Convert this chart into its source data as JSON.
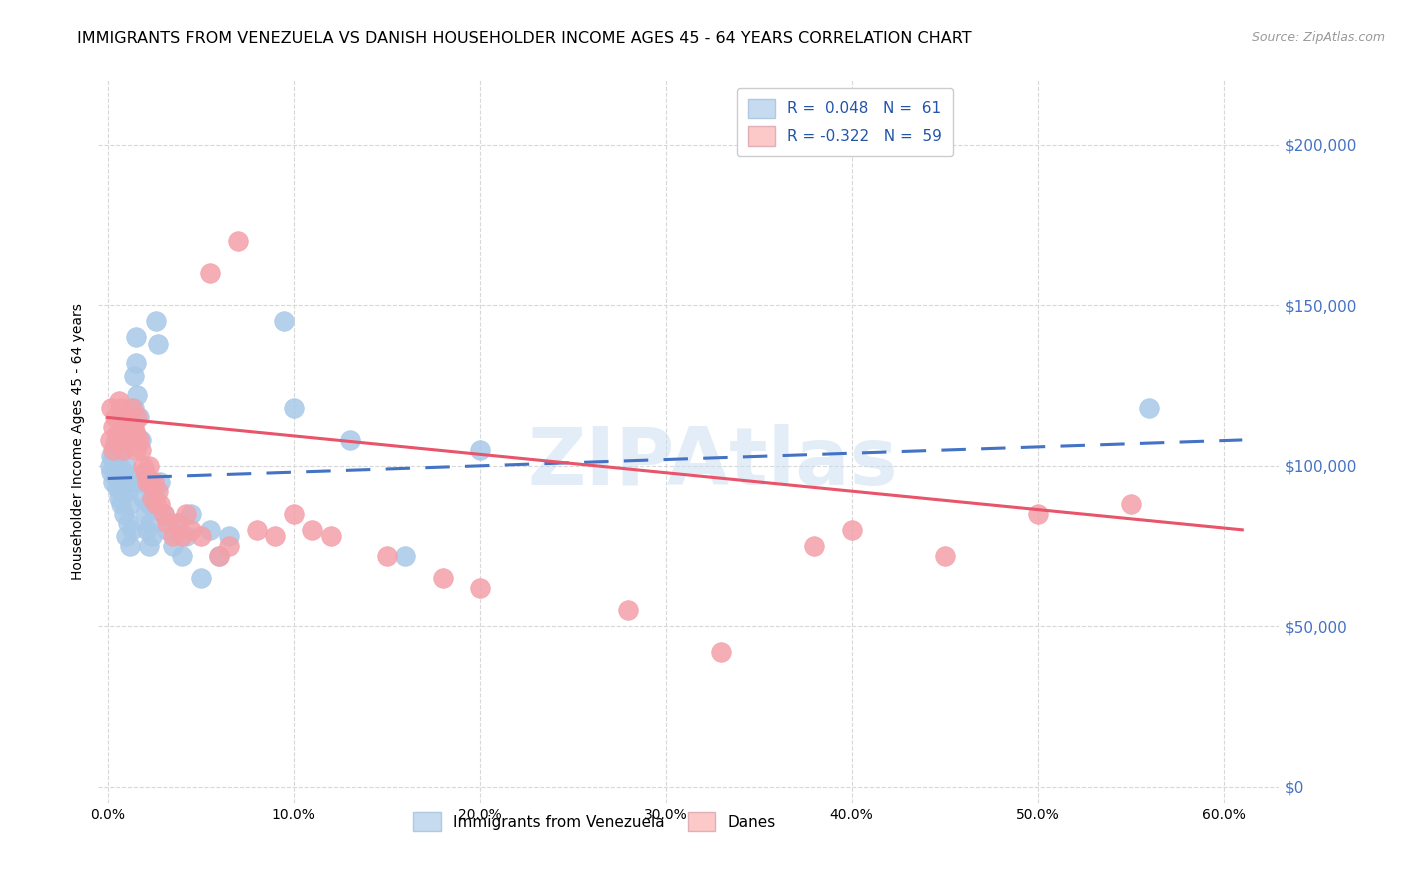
{
  "title": "IMMIGRANTS FROM VENEZUELA VS DANISH HOUSEHOLDER INCOME AGES 45 - 64 YEARS CORRELATION CHART",
  "source": "Source: ZipAtlas.com",
  "ylabel": "Householder Income Ages 45 - 64 years",
  "xlabel_ticks": [
    "0.0%",
    "10.0%",
    "20.0%",
    "30.0%",
    "40.0%",
    "50.0%",
    "60.0%"
  ],
  "xlabel_vals": [
    0.0,
    0.1,
    0.2,
    0.3,
    0.4,
    0.5,
    0.6
  ],
  "ylabel_vals": [
    0,
    50000,
    100000,
    150000,
    200000
  ],
  "ylim": [
    -5000,
    220000
  ],
  "xlim": [
    -0.005,
    0.63
  ],
  "blue_color": "#a8c8e8",
  "pink_color": "#f4a0a8",
  "blue_fill": "#c6dbef",
  "pink_fill": "#fcc8c8",
  "watermark": "ZIPAtlas",
  "background": "#ffffff",
  "blue_scatter": [
    [
      0.001,
      100000
    ],
    [
      0.002,
      98000
    ],
    [
      0.002,
      103000
    ],
    [
      0.003,
      95000
    ],
    [
      0.003,
      102000
    ],
    [
      0.004,
      107000
    ],
    [
      0.004,
      97000
    ],
    [
      0.005,
      93000
    ],
    [
      0.005,
      108000
    ],
    [
      0.006,
      100000
    ],
    [
      0.006,
      90000
    ],
    [
      0.007,
      95000
    ],
    [
      0.007,
      88000
    ],
    [
      0.008,
      105000
    ],
    [
      0.008,
      92000
    ],
    [
      0.009,
      98000
    ],
    [
      0.009,
      85000
    ],
    [
      0.01,
      100000
    ],
    [
      0.01,
      78000
    ],
    [
      0.011,
      92000
    ],
    [
      0.011,
      82000
    ],
    [
      0.012,
      88000
    ],
    [
      0.012,
      75000
    ],
    [
      0.013,
      95000
    ],
    [
      0.013,
      80000
    ],
    [
      0.014,
      128000
    ],
    [
      0.014,
      118000
    ],
    [
      0.015,
      140000
    ],
    [
      0.015,
      132000
    ],
    [
      0.016,
      122000
    ],
    [
      0.017,
      115000
    ],
    [
      0.018,
      108000
    ],
    [
      0.018,
      95000
    ],
    [
      0.019,
      90000
    ],
    [
      0.02,
      85000
    ],
    [
      0.021,
      80000
    ],
    [
      0.022,
      75000
    ],
    [
      0.022,
      88000
    ],
    [
      0.023,
      82000
    ],
    [
      0.024,
      78000
    ],
    [
      0.025,
      92000
    ],
    [
      0.026,
      145000
    ],
    [
      0.027,
      138000
    ],
    [
      0.028,
      95000
    ],
    [
      0.03,
      85000
    ],
    [
      0.032,
      80000
    ],
    [
      0.035,
      75000
    ],
    [
      0.038,
      82000
    ],
    [
      0.04,
      72000
    ],
    [
      0.042,
      78000
    ],
    [
      0.045,
      85000
    ],
    [
      0.05,
      65000
    ],
    [
      0.055,
      80000
    ],
    [
      0.06,
      72000
    ],
    [
      0.065,
      78000
    ],
    [
      0.095,
      145000
    ],
    [
      0.1,
      118000
    ],
    [
      0.13,
      108000
    ],
    [
      0.16,
      72000
    ],
    [
      0.2,
      105000
    ],
    [
      0.56,
      118000
    ]
  ],
  "pink_scatter": [
    [
      0.001,
      108000
    ],
    [
      0.002,
      118000
    ],
    [
      0.003,
      112000
    ],
    [
      0.003,
      105000
    ],
    [
      0.004,
      115000
    ],
    [
      0.005,
      110000
    ],
    [
      0.006,
      108000
    ],
    [
      0.006,
      120000
    ],
    [
      0.007,
      118000
    ],
    [
      0.008,
      112000
    ],
    [
      0.008,
      105000
    ],
    [
      0.009,
      108000
    ],
    [
      0.01,
      115000
    ],
    [
      0.011,
      110000
    ],
    [
      0.012,
      108000
    ],
    [
      0.013,
      118000
    ],
    [
      0.014,
      112000
    ],
    [
      0.015,
      105000
    ],
    [
      0.015,
      110000
    ],
    [
      0.016,
      115000
    ],
    [
      0.017,
      108000
    ],
    [
      0.018,
      105000
    ],
    [
      0.019,
      100000
    ],
    [
      0.02,
      98000
    ],
    [
      0.021,
      95000
    ],
    [
      0.022,
      100000
    ],
    [
      0.023,
      95000
    ],
    [
      0.024,
      90000
    ],
    [
      0.025,
      95000
    ],
    [
      0.026,
      88000
    ],
    [
      0.027,
      92000
    ],
    [
      0.028,
      88000
    ],
    [
      0.03,
      85000
    ],
    [
      0.032,
      82000
    ],
    [
      0.035,
      78000
    ],
    [
      0.038,
      82000
    ],
    [
      0.04,
      78000
    ],
    [
      0.042,
      85000
    ],
    [
      0.045,
      80000
    ],
    [
      0.05,
      78000
    ],
    [
      0.055,
      160000
    ],
    [
      0.06,
      72000
    ],
    [
      0.065,
      75000
    ],
    [
      0.07,
      170000
    ],
    [
      0.08,
      80000
    ],
    [
      0.09,
      78000
    ],
    [
      0.1,
      85000
    ],
    [
      0.11,
      80000
    ],
    [
      0.12,
      78000
    ],
    [
      0.15,
      72000
    ],
    [
      0.18,
      65000
    ],
    [
      0.2,
      62000
    ],
    [
      0.28,
      55000
    ],
    [
      0.33,
      42000
    ],
    [
      0.38,
      75000
    ],
    [
      0.4,
      80000
    ],
    [
      0.45,
      72000
    ],
    [
      0.5,
      85000
    ],
    [
      0.55,
      88000
    ]
  ],
  "blue_line_x": [
    0.0,
    0.61
  ],
  "blue_line_y": [
    96000,
    108000
  ],
  "pink_line_x": [
    0.0,
    0.61
  ],
  "pink_line_y": [
    115000,
    80000
  ],
  "grid_color": "#d8d8d8",
  "title_fontsize": 11.5,
  "label_fontsize": 10,
  "tick_fontsize": 10,
  "legend_fontsize": 11
}
